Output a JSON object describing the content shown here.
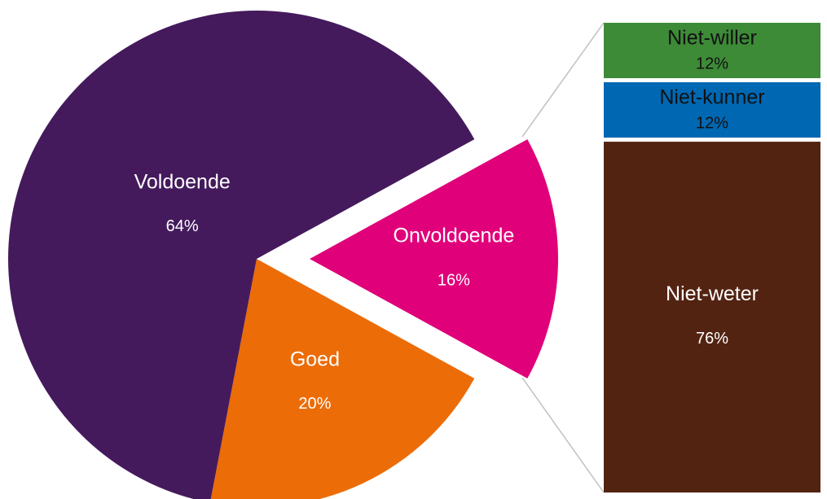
{
  "chart_data": [
    {
      "type": "pie",
      "categories": [
        "Onvoldoende",
        "Goed",
        "Voldoende"
      ],
      "values": [
        16,
        20,
        64
      ],
      "value_labels": [
        "16%",
        "20%",
        "64%"
      ],
      "colors": [
        "#e0007a",
        "#ec6c08",
        "#441a5c"
      ]
    },
    {
      "type": "bar",
      "categories": [
        "Niet-willer",
        "Niet-kunner",
        "Niet-weter"
      ],
      "values": [
        12,
        12,
        76
      ],
      "value_labels": [
        "12%",
        "12%",
        "76%"
      ],
      "colors": [
        "#3d8a37",
        "#0067b2",
        "#532312"
      ]
    }
  ]
}
